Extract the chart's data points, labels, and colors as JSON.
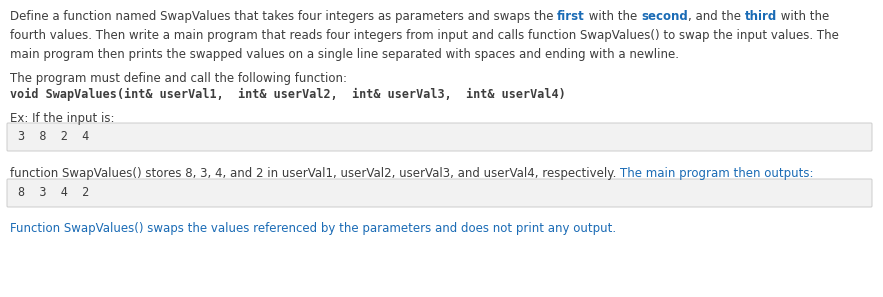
{
  "bg_color": "#ffffff",
  "nc": "#3d3d3d",
  "bc": "#1a6bb5",
  "box_bg": "#f2f2f2",
  "box_border": "#cccccc",
  "fs": 8.5,
  "fs_mono": 8.5,
  "line1_normal": "Define a function named SwapValues that takes four integers as parameters and swaps the ",
  "line1_bold1": "first",
  "line1_mid1": " with the ",
  "line1_bold2": "second",
  "line1_mid2": ", and the ",
  "line1_bold3": "third",
  "line1_end": " with the",
  "line2": "fourth values. Then write a main program that reads four integers from input and calls function SwapValues() to swap the input values. The",
  "line3": "main program then prints the swapped values on a single line separated with spaces and ending with a newline.",
  "line4": "The program must define and call the following function:",
  "line5_mono": "void SwapValues(int& userVal1,  int& userVal2,  int& userVal3,  int& userVal4)",
  "line6": "Ex: If the input is:",
  "box1": "3  8  2  4",
  "line7_normal": "function SwapValues() stores 8, 3, 4, and 2 in userVal1, userVal2, userVal3, and userVal4, respectively. ",
  "line7_blue": "The main program then outputs:",
  "box2": "8  3  4  2",
  "line8_blue": "Function SwapValues() swaps the values referenced by the parameters and does not print any output."
}
